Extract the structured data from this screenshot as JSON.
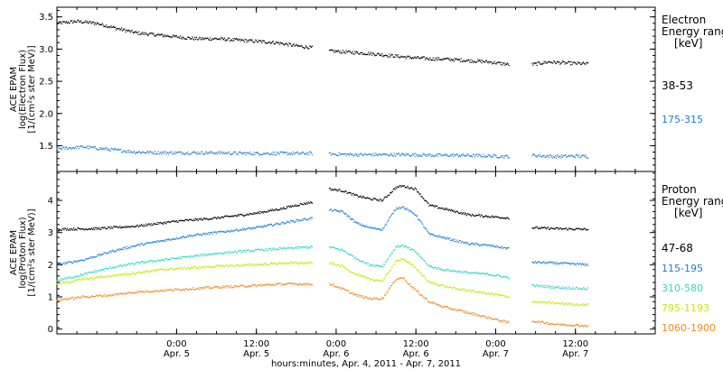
{
  "chart_data": {
    "type": "scatter",
    "x_axis": {
      "label": "hours:minutes, Apr.  4, 2011 - Apr.  7, 2011",
      "range_hours": [
        0,
        90
      ],
      "ticks": [
        {
          "hour": 18,
          "time": "0:00",
          "date": "Apr. 5"
        },
        {
          "hour": 30,
          "time": "12:00",
          "date": "Apr. 5"
        },
        {
          "hour": 42,
          "time": "0:00",
          "date": "Apr. 6"
        },
        {
          "hour": 54,
          "time": "12:00",
          "date": "Apr. 6"
        },
        {
          "hour": 66,
          "time": "0:00",
          "date": "Apr. 7"
        },
        {
          "hour": 78,
          "time": "12:00",
          "date": "Apr. 7"
        }
      ]
    },
    "panels": [
      {
        "id": "electron",
        "ylabel": [
          "ACE EPAM",
          "log(Electron Flux)",
          "[1/(cm²s ster MeV)]"
        ],
        "ylim": [
          1.1,
          3.65
        ],
        "yticks": [
          1.5,
          2.0,
          2.5,
          3.0,
          3.5
        ],
        "ytick_labels": [
          "1.5",
          "2.0",
          "2.5",
          "3.0",
          "3.5"
        ],
        "legend_title": [
          "Electron",
          "Energy ranges",
          "[keV]"
        ],
        "series": [
          {
            "name": "38-53",
            "color": "#000000",
            "segments": [
              {
                "x": [
                  0,
                  3,
                  6,
                  9,
                  12,
                  15,
                  18,
                  21,
                  24,
                  27,
                  30,
                  33,
                  36,
                  38.5
                ],
                "y": [
                  3.4,
                  3.43,
                  3.4,
                  3.32,
                  3.25,
                  3.22,
                  3.19,
                  3.16,
                  3.16,
                  3.14,
                  3.12,
                  3.1,
                  3.05,
                  3.02
                ]
              },
              {
                "x": [
                  41,
                  44,
                  47,
                  50,
                  53,
                  56,
                  59,
                  62,
                  65,
                  68
                ],
                "y": [
                  2.97,
                  2.95,
                  2.93,
                  2.9,
                  2.87,
                  2.85,
                  2.84,
                  2.82,
                  2.8,
                  2.76
                ]
              },
              {
                "x": [
                  71.5,
                  74,
                  77,
                  80
                ],
                "y": [
                  2.76,
                  2.8,
                  2.78,
                  2.77
                ]
              }
            ]
          },
          {
            "name": "175-315",
            "color": "#1e7fd0",
            "segments": [
              {
                "x": [
                  0,
                  4,
                  8,
                  12,
                  16,
                  20,
                  24,
                  28,
                  32,
                  36,
                  38.5
                ],
                "y": [
                  1.45,
                  1.48,
                  1.44,
                  1.4,
                  1.39,
                  1.39,
                  1.39,
                  1.38,
                  1.38,
                  1.38,
                  1.38
                ]
              },
              {
                "x": [
                  41,
                  45,
                  49,
                  53,
                  57,
                  61,
                  65,
                  68
                ],
                "y": [
                  1.37,
                  1.36,
                  1.36,
                  1.36,
                  1.35,
                  1.35,
                  1.34,
                  1.33
                ]
              },
              {
                "x": [
                  71.5,
                  75,
                  78,
                  80
                ],
                "y": [
                  1.35,
                  1.33,
                  1.34,
                  1.33
                ]
              }
            ]
          }
        ]
      },
      {
        "id": "proton",
        "ylabel": [
          "ACE EPAM",
          "log(Proton Flux)",
          "[1/(cm²s ster MeV)]"
        ],
        "ylim": [
          -0.15,
          4.9
        ],
        "yticks": [
          0,
          1,
          2,
          3,
          4
        ],
        "ytick_labels": [
          "0",
          "1",
          "2",
          "3",
          "4"
        ],
        "legend_title": [
          "Proton",
          "Energy ranges",
          "[keV]"
        ],
        "series": [
          {
            "name": "47-68",
            "color": "#000000",
            "segments": [
              {
                "x": [
                  0,
                  6,
                  12,
                  18,
                  24,
                  30,
                  34,
                  36,
                  38.5
                ],
                "y": [
                  3.1,
                  3.12,
                  3.2,
                  3.35,
                  3.45,
                  3.6,
                  3.75,
                  3.85,
                  3.95
                ]
              },
              {
                "x": [
                  41,
                  43,
                  45,
                  47,
                  49,
                  51,
                  52,
                  54,
                  56,
                  58,
                  60,
                  62,
                  65,
                  68
                ],
                "y": [
                  4.35,
                  4.3,
                  4.15,
                  4.05,
                  4.0,
                  4.4,
                  4.45,
                  4.35,
                  3.85,
                  3.75,
                  3.65,
                  3.55,
                  3.5,
                  3.45
                ]
              },
              {
                "x": [
                  71.5,
                  75,
                  80
                ],
                "y": [
                  3.15,
                  3.12,
                  3.1
                ]
              }
            ]
          },
          {
            "name": "115-195",
            "color": "#1e7fd0",
            "segments": [
              {
                "x": [
                  0,
                  4,
                  8,
                  12,
                  16,
                  20,
                  24,
                  30,
                  34,
                  38.5
                ],
                "y": [
                  2.0,
                  2.15,
                  2.4,
                  2.6,
                  2.75,
                  2.9,
                  3.0,
                  3.15,
                  3.3,
                  3.45
                ]
              },
              {
                "x": [
                  41,
                  43,
                  45,
                  47,
                  49,
                  51,
                  52,
                  54,
                  56,
                  58,
                  60,
                  62,
                  65,
                  68
                ],
                "y": [
                  3.7,
                  3.65,
                  3.3,
                  3.15,
                  3.1,
                  3.75,
                  3.8,
                  3.55,
                  2.95,
                  2.85,
                  2.75,
                  2.65,
                  2.6,
                  2.5
                ]
              },
              {
                "x": [
                  71.5,
                  75,
                  80
                ],
                "y": [
                  2.08,
                  2.05,
                  2.0
                ]
              }
            ]
          },
          {
            "name": "310-580",
            "color": "#2fd8c8",
            "segments": [
              {
                "x": [
                  0,
                  4,
                  8,
                  12,
                  16,
                  20,
                  24,
                  30,
                  34,
                  38.5
                ],
                "y": [
                  1.5,
                  1.7,
                  1.9,
                  2.05,
                  2.15,
                  2.25,
                  2.35,
                  2.45,
                  2.5,
                  2.55
                ]
              },
              {
                "x": [
                  41,
                  43,
                  45,
                  47,
                  49,
                  51,
                  52,
                  54,
                  56,
                  58,
                  60,
                  62,
                  65,
                  68
                ],
                "y": [
                  2.55,
                  2.45,
                  2.2,
                  2.0,
                  1.95,
                  2.55,
                  2.6,
                  2.4,
                  1.95,
                  1.85,
                  1.8,
                  1.75,
                  1.7,
                  1.6
                ]
              },
              {
                "x": [
                  71.5,
                  75,
                  80
                ],
                "y": [
                  1.35,
                  1.3,
                  1.25
                ]
              }
            ]
          },
          {
            "name": "795-1193",
            "color": "#c8e60a",
            "segments": [
              {
                "x": [
                  0,
                  4,
                  8,
                  12,
                  16,
                  20,
                  24,
                  30,
                  34,
                  38.5
                ],
                "y": [
                  1.4,
                  1.55,
                  1.65,
                  1.75,
                  1.85,
                  1.9,
                  1.95,
                  2.0,
                  2.05,
                  2.05
                ]
              },
              {
                "x": [
                  41,
                  43,
                  45,
                  47,
                  49,
                  51,
                  52,
                  54,
                  56,
                  58,
                  60,
                  62,
                  65,
                  68
                ],
                "y": [
                  2.05,
                  1.95,
                  1.7,
                  1.55,
                  1.5,
                  2.1,
                  2.2,
                  1.9,
                  1.45,
                  1.35,
                  1.25,
                  1.2,
                  1.1,
                  1.0
                ]
              },
              {
                "x": [
                  71.5,
                  75,
                  80
                ],
                "y": [
                  0.85,
                  0.8,
                  0.75
                ]
              }
            ]
          },
          {
            "name": "1060-1900",
            "color": "#f08c1e",
            "segments": [
              {
                "x": [
                  0,
                  4,
                  8,
                  12,
                  16,
                  20,
                  24,
                  30,
                  34,
                  38.5
                ],
                "y": [
                  0.9,
                  1.0,
                  1.05,
                  1.15,
                  1.2,
                  1.25,
                  1.3,
                  1.35,
                  1.4,
                  1.4
                ]
              },
              {
                "x": [
                  41,
                  43,
                  45,
                  47,
                  49,
                  51,
                  52,
                  54,
                  56,
                  58,
                  60,
                  62,
                  65,
                  68
                ],
                "y": [
                  1.4,
                  1.25,
                  1.05,
                  0.95,
                  0.95,
                  1.55,
                  1.6,
                  1.2,
                  0.85,
                  0.7,
                  0.6,
                  0.5,
                  0.35,
                  0.2
                ]
              },
              {
                "x": [
                  71.5,
                  75,
                  80
                ],
                "y": [
                  0.25,
                  0.15,
                  0.1
                ]
              }
            ]
          }
        ]
      }
    ]
  }
}
